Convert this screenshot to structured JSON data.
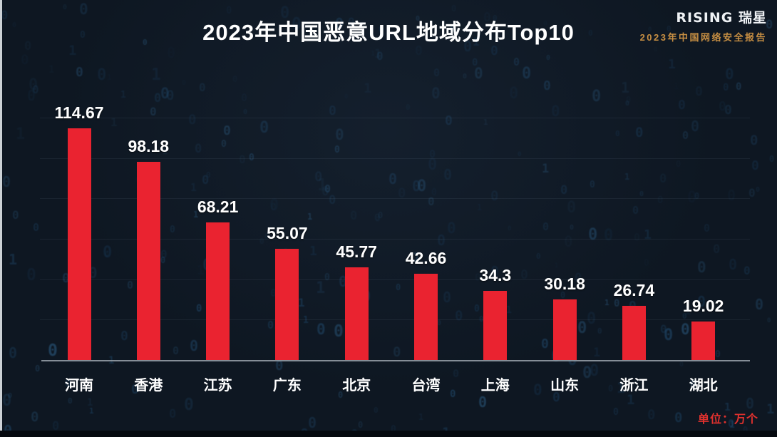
{
  "page": {
    "title": "2023年中国恶意URL地域分布Top10",
    "unit_label": "单位：万个"
  },
  "brand": {
    "logo_text": "RISING 瑞星",
    "subtitle": "2023年中国网络安全报告"
  },
  "colors": {
    "background": "#0e1722",
    "bar_red": "#ea2330",
    "unit_red": "#e0312e",
    "subtitle_orange": "#c78f43",
    "title_white": "#ffffff",
    "axis_gray": "#9aa3ab",
    "digit_blue": "#2e6da0"
  },
  "chart_data": {
    "type": "bar",
    "title": "2023年中国恶意URL地域分布Top10",
    "categories": [
      "河南",
      "香港",
      "江苏",
      "广东",
      "北京",
      "台湾",
      "上海",
      "山东",
      "浙江",
      "湖北"
    ],
    "values": [
      114.67,
      98.18,
      68.21,
      55.07,
      45.77,
      42.66,
      34.3,
      30.18,
      26.74,
      19.02
    ],
    "value_labels": [
      "114.67",
      "98.18",
      "68.21",
      "55.07",
      "45.77",
      "42.66",
      "34.3",
      "30.18",
      "26.74",
      "19.02"
    ],
    "unit": "万个",
    "xlabel": "",
    "ylabel": "",
    "ylim": [
      0,
      120
    ],
    "gridline_step": 20,
    "grid": true,
    "legend_position": "none",
    "bar_color": "#ea2330"
  }
}
